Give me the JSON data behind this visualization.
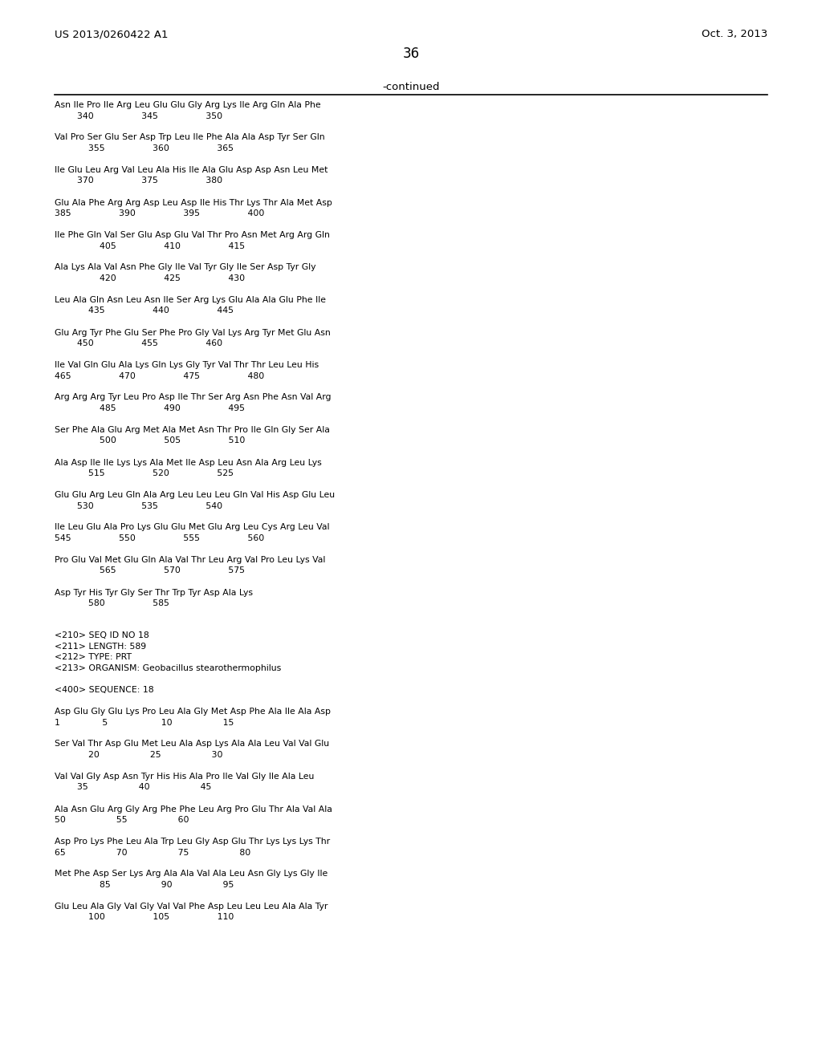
{
  "left_header": "US 2013/0260422 A1",
  "right_header": "Oct. 3, 2013",
  "page_number": "36",
  "continued_label": "-continued",
  "background_color": "#ffffff",
  "text_color": "#000000",
  "content_lines": [
    "Asn Ile Pro Ile Arg Leu Glu Glu Gly Arg Lys Ile Arg Gln Ala Phe",
    "        340                 345                 350",
    "",
    "Val Pro Ser Glu Ser Asp Trp Leu Ile Phe Ala Ala Asp Tyr Ser Gln",
    "            355                 360                 365",
    "",
    "Ile Glu Leu Arg Val Leu Ala His Ile Ala Glu Asp Asp Asn Leu Met",
    "        370                 375                 380",
    "",
    "Glu Ala Phe Arg Arg Asp Leu Asp Ile His Thr Lys Thr Ala Met Asp",
    "385                 390                 395                 400",
    "",
    "Ile Phe Gln Val Ser Glu Asp Glu Val Thr Pro Asn Met Arg Arg Gln",
    "                405                 410                 415",
    "",
    "Ala Lys Ala Val Asn Phe Gly Ile Val Tyr Gly Ile Ser Asp Tyr Gly",
    "                420                 425                 430",
    "",
    "Leu Ala Gln Asn Leu Asn Ile Ser Arg Lys Glu Ala Ala Glu Phe Ile",
    "            435                 440                 445",
    "",
    "Glu Arg Tyr Phe Glu Ser Phe Pro Gly Val Lys Arg Tyr Met Glu Asn",
    "        450                 455                 460",
    "",
    "Ile Val Gln Glu Ala Lys Gln Lys Gly Tyr Val Thr Thr Leu Leu His",
    "465                 470                 475                 480",
    "",
    "Arg Arg Arg Tyr Leu Pro Asp Ile Thr Ser Arg Asn Phe Asn Val Arg",
    "                485                 490                 495",
    "",
    "Ser Phe Ala Glu Arg Met Ala Met Asn Thr Pro Ile Gln Gly Ser Ala",
    "                500                 505                 510",
    "",
    "Ala Asp Ile Ile Lys Lys Ala Met Ile Asp Leu Asn Ala Arg Leu Lys",
    "            515                 520                 525",
    "",
    "Glu Glu Arg Leu Gln Ala Arg Leu Leu Leu Gln Val His Asp Glu Leu",
    "        530                 535                 540",
    "",
    "Ile Leu Glu Ala Pro Lys Glu Glu Met Glu Arg Leu Cys Arg Leu Val",
    "545                 550                 555                 560",
    "",
    "Pro Glu Val Met Glu Gln Ala Val Thr Leu Arg Val Pro Leu Lys Val",
    "                565                 570                 575",
    "",
    "Asp Tyr His Tyr Gly Ser Thr Trp Tyr Asp Ala Lys",
    "            580                 585",
    "",
    "",
    "<210> SEQ ID NO 18",
    "<211> LENGTH: 589",
    "<212> TYPE: PRT",
    "<213> ORGANISM: Geobacillus stearothermophilus",
    "",
    "<400> SEQUENCE: 18",
    "",
    "Asp Glu Gly Glu Lys Pro Leu Ala Gly Met Asp Phe Ala Ile Ala Asp",
    "1               5                   10                  15",
    "",
    "Ser Val Thr Asp Glu Met Leu Ala Asp Lys Ala Ala Leu Val Val Glu",
    "            20                  25                  30",
    "",
    "Val Val Gly Asp Asn Tyr His His Ala Pro Ile Val Gly Ile Ala Leu",
    "        35                  40                  45",
    "",
    "Ala Asn Glu Arg Gly Arg Phe Phe Leu Arg Pro Glu Thr Ala Val Ala",
    "50                  55                  60",
    "",
    "Asp Pro Lys Phe Leu Ala Trp Leu Gly Asp Glu Thr Lys Lys Lys Thr",
    "65                  70                  75                  80",
    "",
    "Met Phe Asp Ser Lys Arg Ala Ala Val Ala Leu Asn Gly Lys Gly Ile",
    "                85                  90                  95",
    "",
    "Glu Leu Ala Gly Val Gly Val Val Phe Asp Leu Leu Leu Ala Ala Tyr",
    "            100                 105                 110"
  ]
}
